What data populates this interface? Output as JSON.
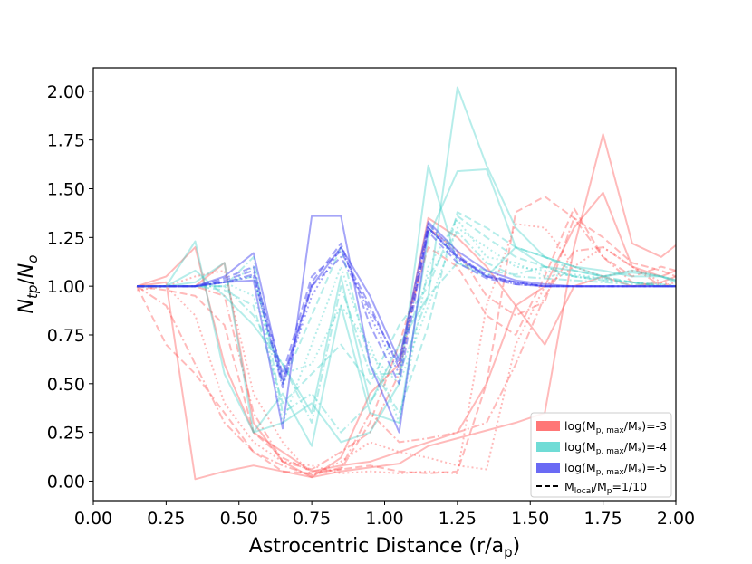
{
  "chart_data": {
    "type": "line",
    "xlabel": "Astrocentric Distance (r/a_p)",
    "ylabel": "N_tp/N_o",
    "xlim": [
      0.0,
      2.0
    ],
    "ylim": [
      -0.1,
      2.12
    ],
    "xticks": [
      "0.00",
      "0.25",
      "0.50",
      "0.75",
      "1.00",
      "1.25",
      "1.50",
      "1.75",
      "2.00"
    ],
    "yticks": [
      "0.00",
      "0.25",
      "0.50",
      "0.75",
      "1.00",
      "1.25",
      "1.50",
      "1.75",
      "2.00"
    ],
    "grid": false,
    "legend_position": "bottom-right",
    "legend": [
      {
        "label": "log(M_p,max/M_*)=-3",
        "color": "#ff4a4a",
        "kind": "patch"
      },
      {
        "label": "log(M_p,max/M_*)=-4",
        "color": "#40d0c8",
        "kind": "patch"
      },
      {
        "label": "log(M_p,max/M_*)=-5",
        "color": "#3838f0",
        "kind": "patch"
      },
      {
        "label": "M_local/M_p=1/10",
        "color": "#000000",
        "kind": "dashed-line"
      }
    ],
    "x": [
      0.15,
      0.25,
      0.35,
      0.45,
      0.55,
      0.65,
      0.75,
      0.85,
      0.95,
      1.05,
      1.15,
      1.25,
      1.35,
      1.45,
      1.55,
      1.65,
      1.75,
      1.85,
      1.95,
      2.0
    ],
    "series": [
      {
        "group": "-3",
        "dash": "solid",
        "values": [
          1.0,
          1.02,
          0.01,
          0.05,
          0.08,
          0.05,
          0.02,
          0.05,
          0.07,
          0.09,
          0.18,
          0.22,
          0.26,
          0.3,
          0.35,
          1.2,
          1.78,
          1.22,
          1.15,
          1.21
        ]
      },
      {
        "group": "-3",
        "dash": "solid",
        "values": [
          1.0,
          1.05,
          1.2,
          0.6,
          0.25,
          0.15,
          0.05,
          0.08,
          0.1,
          0.15,
          0.2,
          0.25,
          0.5,
          0.9,
          1.0,
          1.3,
          1.48,
          1.1,
          1.05,
          1.08
        ]
      },
      {
        "group": "-3",
        "dash": "solid",
        "values": [
          1.0,
          1.0,
          1.0,
          1.12,
          0.3,
          0.1,
          0.02,
          0.12,
          0.45,
          0.6,
          1.35,
          1.25,
          1.1,
          0.9,
          0.7,
          1.0,
          1.05,
          1.0,
          1.02,
          1.05
        ]
      },
      {
        "group": "-3",
        "dash": "dashed",
        "values": [
          1.0,
          0.98,
          0.95,
          0.8,
          0.25,
          0.12,
          0.05,
          0.06,
          0.08,
          0.05,
          0.04,
          0.05,
          0.5,
          1.38,
          1.46,
          1.35,
          1.25,
          1.12,
          1.08,
          1.05
        ]
      },
      {
        "group": "-3",
        "dash": "dashed",
        "values": [
          1.0,
          0.7,
          0.55,
          0.35,
          0.15,
          0.05,
          0.04,
          0.06,
          0.3,
          0.7,
          1.2,
          1.1,
          0.85,
          0.75,
          1.05,
          1.4,
          1.15,
          1.05,
          1.1,
          1.08
        ]
      },
      {
        "group": "-3",
        "dash": "dotted",
        "values": [
          1.0,
          1.0,
          0.85,
          0.4,
          0.2,
          0.1,
          0.08,
          0.04,
          0.05,
          0.04,
          0.05,
          0.04,
          0.9,
          1.32,
          1.3,
          1.1,
          1.2,
          1.1,
          1.02,
          1.0
        ]
      },
      {
        "group": "-3",
        "dash": "dotted",
        "values": [
          0.98,
          1.0,
          1.05,
          1.08,
          0.45,
          0.2,
          0.03,
          0.1,
          0.2,
          0.15,
          0.12,
          0.08,
          0.06,
          0.7,
          1.0,
          1.1,
          1.05,
          1.08,
          1.05,
          1.03
        ]
      },
      {
        "group": "-3",
        "dash": "dashdot",
        "values": [
          1.0,
          0.9,
          0.6,
          0.3,
          0.15,
          0.08,
          0.03,
          0.07,
          0.35,
          0.2,
          0.22,
          0.25,
          0.3,
          0.6,
          0.95,
          1.18,
          1.2,
          1.1,
          1.0,
          1.02
        ]
      },
      {
        "group": "-3",
        "dash": "dashdot",
        "values": [
          1.0,
          1.0,
          1.0,
          0.95,
          0.35,
          0.1,
          0.06,
          0.15,
          0.25,
          0.55,
          1.3,
          1.18,
          0.95,
          0.85,
          0.92,
          1.35,
          1.15,
          1.02,
          1.0,
          1.0
        ]
      },
      {
        "group": "-4",
        "dash": "solid",
        "values": [
          1.0,
          1.0,
          1.23,
          0.55,
          0.25,
          0.3,
          0.4,
          0.2,
          0.25,
          0.5,
          1.62,
          1.12,
          1.05,
          1.2,
          1.1,
          1.08,
          1.05,
          1.08,
          1.05,
          1.03
        ]
      },
      {
        "group": "-4",
        "dash": "solid",
        "values": [
          1.0,
          1.0,
          1.08,
          0.95,
          0.8,
          0.6,
          0.35,
          1.05,
          0.4,
          0.7,
          0.95,
          2.02,
          1.62,
          1.3,
          1.15,
          1.1,
          1.05,
          1.07,
          1.05,
          1.02
        ]
      },
      {
        "group": "-4",
        "dash": "solid",
        "values": [
          1.0,
          1.0,
          1.02,
          1.12,
          0.25,
          0.45,
          0.18,
          0.9,
          0.35,
          0.3,
          1.25,
          1.59,
          1.6,
          1.2,
          1.15,
          1.1,
          1.08,
          1.05,
          1.05,
          1.03
        ]
      },
      {
        "group": "-4",
        "dash": "dashed",
        "values": [
          1.0,
          1.0,
          1.0,
          1.02,
          1.05,
          0.5,
          0.85,
          1.2,
          0.6,
          0.35,
          0.8,
          1.38,
          1.3,
          1.2,
          1.15,
          1.08,
          1.05,
          1.02,
          1.0,
          1.0
        ]
      },
      {
        "group": "-4",
        "dash": "dashed",
        "values": [
          1.0,
          1.0,
          1.0,
          0.98,
          0.9,
          0.4,
          0.55,
          0.7,
          0.5,
          0.8,
          1.0,
          1.36,
          1.25,
          1.15,
          1.1,
          1.05,
          1.04,
          1.02,
          1.01,
          1.0
        ]
      },
      {
        "group": "-4",
        "dash": "dotted",
        "values": [
          1.0,
          1.0,
          1.0,
          1.0,
          1.1,
          0.3,
          0.7,
          1.1,
          0.65,
          0.5,
          0.9,
          1.3,
          1.2,
          1.1,
          1.08,
          1.05,
          1.03,
          1.02,
          1.0,
          1.0
        ]
      },
      {
        "group": "-4",
        "dash": "dotted",
        "values": [
          1.0,
          1.0,
          1.0,
          1.02,
          0.95,
          0.55,
          0.6,
          0.9,
          0.7,
          0.3,
          1.1,
          1.34,
          1.15,
          1.12,
          1.05,
          1.06,
          1.04,
          1.02,
          1.01,
          1.0
        ]
      },
      {
        "group": "-4",
        "dash": "dashdot",
        "values": [
          1.0,
          1.0,
          1.0,
          1.0,
          0.85,
          0.6,
          0.3,
          1.0,
          0.55,
          0.55,
          0.95,
          1.12,
          1.08,
          1.06,
          1.1,
          1.05,
          1.03,
          1.02,
          1.0,
          1.0
        ]
      },
      {
        "group": "-4",
        "dash": "dashdot",
        "values": [
          1.0,
          1.0,
          1.0,
          1.0,
          1.15,
          0.35,
          0.45,
          0.25,
          0.4,
          0.65,
          1.05,
          1.28,
          1.12,
          1.05,
          1.04,
          1.03,
          1.02,
          1.01,
          1.0,
          1.0
        ]
      },
      {
        "group": "-5",
        "dash": "solid",
        "values": [
          1.0,
          1.0,
          1.0,
          1.02,
          1.03,
          0.27,
          1.36,
          1.36,
          0.6,
          0.25,
          1.3,
          1.15,
          1.05,
          1.02,
          1.0,
          1.0,
          1.0,
          1.0,
          1.0,
          1.0
        ]
      },
      {
        "group": "-5",
        "dash": "solid",
        "values": [
          1.0,
          1.0,
          1.0,
          1.05,
          1.17,
          0.52,
          1.0,
          1.2,
          0.95,
          0.62,
          1.33,
          1.18,
          1.08,
          1.03,
          1.01,
          1.0,
          1.0,
          1.0,
          1.0,
          1.0
        ]
      },
      {
        "group": "-5",
        "dash": "dashed",
        "values": [
          1.0,
          1.0,
          1.0,
          1.04,
          1.1,
          0.5,
          1.02,
          1.22,
          0.8,
          0.5,
          1.3,
          1.15,
          1.06,
          1.02,
          1.0,
          1.0,
          1.0,
          1.0,
          1.0,
          1.0
        ]
      },
      {
        "group": "-5",
        "dash": "dashed",
        "values": [
          1.0,
          1.0,
          1.0,
          1.03,
          1.08,
          0.55,
          1.05,
          1.18,
          0.9,
          0.58,
          1.28,
          1.12,
          1.04,
          1.01,
          1.0,
          1.0,
          1.0,
          1.0,
          1.0,
          1.0
        ]
      },
      {
        "group": "-5",
        "dash": "dotted",
        "values": [
          1.0,
          1.0,
          1.0,
          1.02,
          1.05,
          0.5,
          0.95,
          1.2,
          0.85,
          0.55,
          1.3,
          1.14,
          1.05,
          1.02,
          1.0,
          1.0,
          1.0,
          1.0,
          1.0,
          1.0
        ]
      },
      {
        "group": "-5",
        "dash": "dashdot",
        "values": [
          1.0,
          1.0,
          1.0,
          1.02,
          1.06,
          0.48,
          1.0,
          1.15,
          0.88,
          0.6,
          1.32,
          1.16,
          1.05,
          1.01,
          1.0,
          1.0,
          1.0,
          1.0,
          1.0,
          1.0
        ]
      }
    ]
  }
}
